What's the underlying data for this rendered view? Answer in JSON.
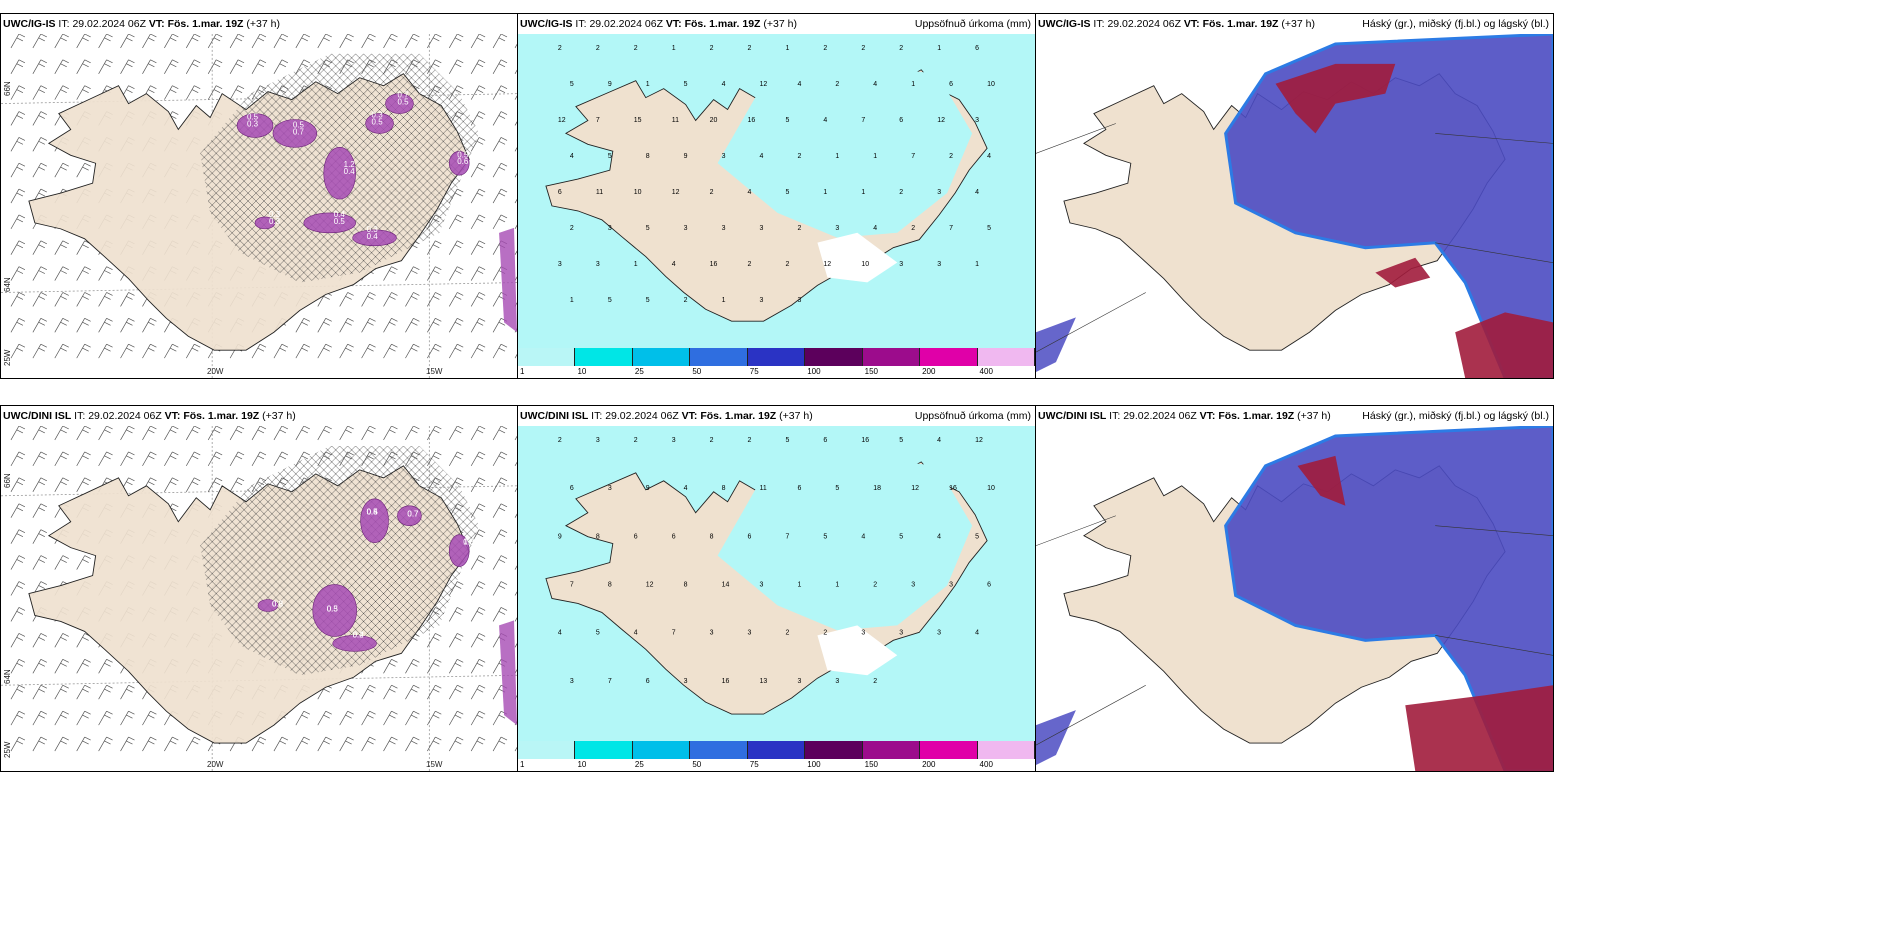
{
  "rows": [
    {
      "model": "UWC/IG-IS",
      "it_label": "IT:",
      "it_value": "29.02.2024 06Z",
      "vt_label": "VT:",
      "vt_value": "Fös. 1.mar. 19Z",
      "lead": "(+37 h)",
      "precip_values": [
        "2",
        "2",
        "2",
        "1",
        "2",
        "2",
        "1",
        "2",
        "2",
        "2",
        "1",
        "6",
        "5",
        "9",
        "1",
        "5",
        "4",
        "12",
        "4",
        "2",
        "4",
        "1",
        "6",
        "10",
        "12",
        "7",
        "15",
        "11",
        "20",
        "16",
        "5",
        "4",
        "7",
        "6",
        "12",
        "3",
        "4",
        "5",
        "8",
        "9",
        "3",
        "4",
        "2",
        "1",
        "1",
        "7",
        "2",
        "4",
        "6",
        "11",
        "10",
        "12",
        "2",
        "4",
        "5",
        "1",
        "1",
        "2",
        "3",
        "4",
        "2",
        "3",
        "5",
        "3",
        "3",
        "3",
        "2",
        "3",
        "4",
        "2",
        "7",
        "5",
        "3",
        "3",
        "1",
        "4",
        "16",
        "2",
        "2",
        "12",
        "10",
        "3",
        "3",
        "1",
        "1",
        "5",
        "5",
        "2",
        "1",
        "3",
        "3"
      ],
      "ice_labels": [
        "0.5",
        "0.7",
        "1.2",
        "0.5",
        "0.7",
        "0.5",
        "0.3",
        "0.6",
        "0.3",
        "0.3",
        "0.5",
        "0.4",
        "0.3",
        "0.5",
        "0.4",
        "0.4",
        "0.5",
        "0.3"
      ]
    },
    {
      "model": "UWC/DINI ISL",
      "it_label": "IT:",
      "it_value": "29.02.2024 06Z",
      "vt_label": "VT:",
      "vt_value": "Fös. 1.mar. 19Z",
      "lead": "(+37 h)",
      "precip_values": [
        "2",
        "3",
        "2",
        "3",
        "2",
        "2",
        "5",
        "6",
        "16",
        "5",
        "4",
        "12",
        "6",
        "3",
        "9",
        "4",
        "8",
        "11",
        "6",
        "5",
        "18",
        "12",
        "16",
        "10",
        "9",
        "8",
        "6",
        "6",
        "8",
        "6",
        "7",
        "5",
        "4",
        "5",
        "4",
        "5",
        "7",
        "8",
        "12",
        "8",
        "14",
        "3",
        "1",
        "1",
        "2",
        "3",
        "3",
        "6",
        "4",
        "5",
        "4",
        "7",
        "3",
        "3",
        "2",
        "2",
        "3",
        "3",
        "3",
        "4",
        "3",
        "7",
        "6",
        "3",
        "16",
        "13",
        "3",
        "3",
        "2"
      ],
      "ice_labels": [
        "0.5",
        "0.7",
        "1.0",
        "0.5",
        "0.4",
        "0.8",
        "0.5",
        "0.7",
        "0.3",
        "0.3",
        "0.2",
        "0.3",
        "0.4"
      ]
    }
  ],
  "precip_title": "Uppsöfnuð úrkoma (mm)",
  "cloud_title": "Háský (gr.), miðský (fj.bl.) og lágský (bl.)",
  "lon_labels": [
    "20W",
    "15W"
  ],
  "lat_labels": [
    "66N",
    "64N",
    "25W"
  ],
  "colorbar": {
    "labels": [
      "1",
      "10",
      "25",
      "50",
      "75",
      "100",
      "150",
      "200",
      "400"
    ],
    "colors": [
      "#b9f6f6",
      "#00e6e6",
      "#00bfe9",
      "#2f6ee0",
      "#2a33c4",
      "#5c005c",
      "#9c0c8c",
      "#e000a8",
      "#f0b8f0"
    ]
  },
  "colors": {
    "land": "#efe1cf",
    "precip_light": "#b3f7f7",
    "icing": "#a64bb4",
    "cloud_blue": "#4b4bc2",
    "cloud_red": "#a11c3c"
  }
}
